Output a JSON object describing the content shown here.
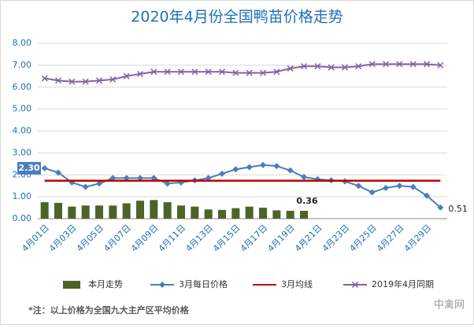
{
  "chart_data": {
    "type": "combo",
    "title": "2020年4月份全国鸭苗价格走势",
    "categories": [
      "4月01日",
      null,
      "4月03日",
      null,
      "4月05日",
      null,
      "4月07日",
      null,
      "4月09日",
      null,
      "4月11日",
      null,
      "4月13日",
      null,
      "4月15日",
      null,
      "4月17日",
      null,
      "4月19日",
      null,
      "4月21日",
      null,
      "4月23日",
      null,
      "4月25日",
      null,
      "4月27日",
      null,
      "4月29日",
      null
    ],
    "series": [
      {
        "name": "本月走势",
        "kind": "bar",
        "color": "#4f6228",
        "values": [
          0.75,
          0.72,
          0.55,
          0.6,
          0.6,
          0.6,
          0.7,
          0.82,
          0.85,
          0.75,
          0.6,
          0.55,
          0.42,
          0.4,
          0.48,
          0.55,
          0.5,
          0.38,
          0.36,
          0.36,
          null,
          null,
          null,
          null,
          null,
          null,
          null,
          null,
          null,
          null
        ],
        "value_labels": [
          null,
          null,
          null,
          null,
          null,
          null,
          null,
          null,
          null,
          null,
          null,
          null,
          null,
          null,
          null,
          null,
          null,
          null,
          null,
          "0.36",
          null,
          null,
          null,
          null,
          null,
          null,
          null,
          null,
          null,
          null
        ]
      },
      {
        "name": "3月每日价格",
        "kind": "line",
        "marker": "diamond",
        "color": "#4a7ebb",
        "values": [
          2.3,
          2.1,
          1.65,
          1.45,
          1.6,
          1.85,
          1.85,
          1.85,
          1.85,
          1.6,
          1.65,
          1.75,
          1.85,
          2.05,
          2.25,
          2.35,
          2.45,
          2.4,
          2.2,
          1.9,
          1.8,
          1.75,
          1.7,
          1.5,
          1.2,
          1.4,
          1.5,
          1.45,
          1.05,
          0.51
        ],
        "value_labels": [
          "2.30",
          null,
          null,
          null,
          null,
          null,
          null,
          null,
          null,
          null,
          null,
          null,
          null,
          null,
          null,
          null,
          null,
          null,
          null,
          null,
          null,
          null,
          null,
          null,
          null,
          null,
          null,
          null,
          null,
          "0.51"
        ]
      },
      {
        "name": "3月均线",
        "kind": "line",
        "marker": "none",
        "color": "#c00000",
        "values": [
          1.73,
          1.73,
          1.73,
          1.73,
          1.73,
          1.73,
          1.73,
          1.73,
          1.73,
          1.73,
          1.73,
          1.73,
          1.73,
          1.73,
          1.73,
          1.73,
          1.73,
          1.73,
          1.73,
          1.73,
          1.73,
          1.73,
          1.73,
          1.73,
          1.73,
          1.73,
          1.73,
          1.73,
          1.73,
          1.73
        ]
      },
      {
        "name": "2019年4月同期",
        "kind": "line",
        "marker": "x",
        "color": "#8064a2",
        "values": [
          6.4,
          6.3,
          6.25,
          6.25,
          6.3,
          6.35,
          6.5,
          6.6,
          6.7,
          6.7,
          6.7,
          6.7,
          6.7,
          6.7,
          6.65,
          6.65,
          6.65,
          6.7,
          6.85,
          6.95,
          6.95,
          6.9,
          6.9,
          6.95,
          7.05,
          7.05,
          7.05,
          7.05,
          7.05,
          7.0
        ]
      }
    ],
    "ylim": [
      0,
      8
    ],
    "yticks": [
      {
        "value": 0,
        "label": "0.00"
      },
      {
        "value": 1,
        "label": "1.00"
      },
      {
        "value": 2,
        "label": "2.00"
      },
      {
        "value": 3,
        "label": "3.00"
      },
      {
        "value": 4,
        "label": "4.00"
      },
      {
        "value": 5,
        "label": "5.00"
      },
      {
        "value": 6,
        "label": "6.00"
      },
      {
        "value": 7,
        "label": "7.00"
      },
      {
        "value": 8,
        "label": "8.00"
      }
    ],
    "grid": true,
    "legend": "bottom",
    "footnote": "*注：以上价格为全国九大主产区平均价格",
    "watermark": "中禽网"
  }
}
